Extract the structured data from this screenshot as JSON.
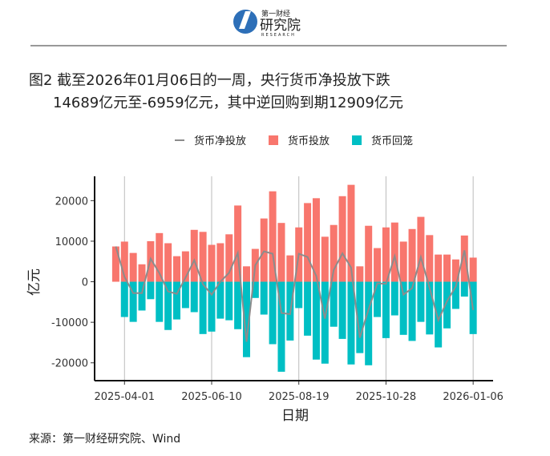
{
  "header": {
    "logo_small": "第一财经",
    "logo_main": "研究院",
    "logo_sub": "RESEARCH"
  },
  "chart_data": {
    "type": "bar",
    "title_line1": "图2 截至2026年01月06日的一周，央行货币净投放下跌",
    "title_line2": "14689亿元至-6959亿元，其中逆回购到期12909亿元",
    "x_label": "日期",
    "y_label": "亿元",
    "source": "来源：第一财经研究院、Wind",
    "x": [
      "2025-03-25",
      "2025-04-01",
      "2025-04-08",
      "2025-04-15",
      "2025-04-22",
      "2025-04-29",
      "2025-05-06",
      "2025-05-13",
      "2025-05-20",
      "2025-05-27",
      "2025-06-03",
      "2025-06-10",
      "2025-06-17",
      "2025-06-24",
      "2025-07-01",
      "2025-07-08",
      "2025-07-15",
      "2025-07-22",
      "2025-07-29",
      "2025-08-05",
      "2025-08-12",
      "2025-08-19",
      "2025-08-26",
      "2025-09-02",
      "2025-09-09",
      "2025-09-16",
      "2025-09-23",
      "2025-09-30",
      "2025-10-07",
      "2025-10-14",
      "2025-10-21",
      "2025-10-28",
      "2025-11-04",
      "2025-11-11",
      "2025-11-18",
      "2025-11-25",
      "2025-12-02",
      "2025-12-09",
      "2025-12-16",
      "2025-12-23",
      "2025-12-30",
      "2026-01-06"
    ],
    "series": [
      {
        "name": "货币净投放",
        "kind": "line",
        "color": "#8c8c8c",
        "values": [
          8700,
          1200,
          -2800,
          -2800,
          5700,
          2100,
          -2400,
          -3000,
          1000,
          5300,
          -600,
          -3200,
          0,
          2200,
          7100,
          -14800,
          4100,
          7500,
          6900,
          -7700,
          -8000,
          6900,
          6100,
          1400,
          -9100,
          2900,
          7000,
          3500,
          -13800,
          -6800,
          -400,
          -500,
          6300,
          -3200,
          -1600,
          6100,
          -1500,
          -9500,
          -4800,
          -1200,
          7730,
          -6959
        ]
      },
      {
        "name": "货币投放",
        "kind": "bar",
        "color": "#f8766d",
        "values": [
          8700,
          9900,
          7100,
          4300,
          10000,
          12000,
          9500,
          6300,
          7500,
          12800,
          12300,
          9100,
          9500,
          11700,
          18800,
          3800,
          8100,
          15600,
          22300,
          14500,
          6500,
          13400,
          19400,
          20600,
          11100,
          14000,
          21100,
          23900,
          3800,
          13800,
          8300,
          13400,
          14600,
          9900,
          13000,
          16000,
          11500,
          6700,
          6700,
          5500,
          11400,
          5950
        ]
      },
      {
        "name": "货币回笼",
        "kind": "bar",
        "color": "#00bfc4",
        "values": [
          0,
          -8700,
          -9900,
          -7100,
          -4300,
          -9900,
          -11900,
          -9300,
          -6500,
          -7500,
          -12900,
          -12300,
          -9100,
          -9500,
          -11700,
          -18600,
          -4000,
          -8100,
          -15400,
          -22200,
          -14500,
          -6500,
          -13300,
          -19200,
          -20200,
          -11100,
          -14100,
          -20400,
          -17600,
          -20600,
          -8700,
          -13900,
          -8300,
          -13100,
          -14600,
          -9900,
          -13000,
          -16200,
          -11500,
          -6700,
          -3670,
          -12909
        ]
      }
    ],
    "xlim": [
      "2025-03-08",
      "2026-01-22"
    ],
    "xticks": [
      "2025-04-01",
      "2025-06-10",
      "2025-08-19",
      "2025-10-28",
      "2026-01-06"
    ],
    "ylim": [
      -24400,
      26000
    ],
    "yticks": [
      -20000,
      -10000,
      0,
      10000,
      20000
    ],
    "grid_x": true
  }
}
